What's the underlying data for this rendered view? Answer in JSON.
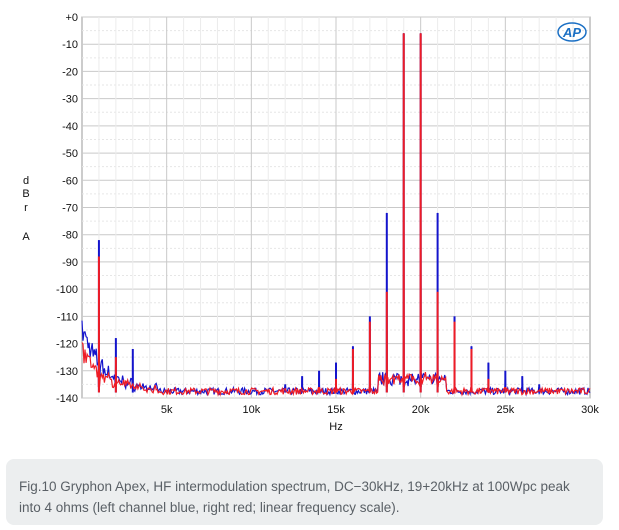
{
  "chart_data": {
    "type": "line",
    "title": "",
    "xlabel": "Hz",
    "ylabel_lines": [
      "d",
      "B",
      "r",
      "A"
    ],
    "xlim": [
      0,
      30000
    ],
    "ylim": [
      -140,
      0
    ],
    "grid": true,
    "x_ticks": [
      {
        "value": 5000,
        "label": "5k"
      },
      {
        "value": 10000,
        "label": "10k"
      },
      {
        "value": 15000,
        "label": "15k"
      },
      {
        "value": 20000,
        "label": "20k"
      },
      {
        "value": 25000,
        "label": "25k"
      },
      {
        "value": 30000,
        "label": "30k"
      }
    ],
    "y_ticks": [
      {
        "value": 0,
        "label": "+0"
      },
      {
        "value": -10,
        "label": "-10"
      },
      {
        "value": -20,
        "label": "-20"
      },
      {
        "value": -30,
        "label": "-30"
      },
      {
        "value": -40,
        "label": "-40"
      },
      {
        "value": -50,
        "label": "-50"
      },
      {
        "value": -60,
        "label": "-60"
      },
      {
        "value": -70,
        "label": "-70"
      },
      {
        "value": -80,
        "label": "-80"
      },
      {
        "value": -90,
        "label": "-90"
      },
      {
        "value": -100,
        "label": "-100"
      },
      {
        "value": -110,
        "label": "-110"
      },
      {
        "value": -120,
        "label": "-120"
      },
      {
        "value": -130,
        "label": "-130"
      },
      {
        "value": -140,
        "label": "-140"
      }
    ],
    "noise_floor_db": -138,
    "series": [
      {
        "name": "Left channel",
        "color": "#1414cc",
        "peaks": [
          {
            "x": 1000,
            "y": -82
          },
          {
            "x": 2000,
            "y": -118
          },
          {
            "x": 3000,
            "y": -122
          },
          {
            "x": 12000,
            "y": -135
          },
          {
            "x": 13000,
            "y": -132
          },
          {
            "x": 14000,
            "y": -130
          },
          {
            "x": 15000,
            "y": -127
          },
          {
            "x": 16000,
            "y": -121
          },
          {
            "x": 17000,
            "y": -110
          },
          {
            "x": 18000,
            "y": -72
          },
          {
            "x": 19000,
            "y": -6
          },
          {
            "x": 20000,
            "y": -6
          },
          {
            "x": 21000,
            "y": -72
          },
          {
            "x": 22000,
            "y": -110
          },
          {
            "x": 23000,
            "y": -121
          },
          {
            "x": 24000,
            "y": -127
          },
          {
            "x": 25000,
            "y": -130
          },
          {
            "x": 26000,
            "y": -132
          },
          {
            "x": 27000,
            "y": -135
          }
        ]
      },
      {
        "name": "Right channel",
        "color": "#ee1c25",
        "peaks": [
          {
            "x": 1000,
            "y": -88
          },
          {
            "x": 2000,
            "y": -125
          },
          {
            "x": 14000,
            "y": -137
          },
          {
            "x": 15000,
            "y": -133
          },
          {
            "x": 16000,
            "y": -122
          },
          {
            "x": 17000,
            "y": -112
          },
          {
            "x": 18000,
            "y": -101
          },
          {
            "x": 19000,
            "y": -6
          },
          {
            "x": 20000,
            "y": -6
          },
          {
            "x": 21000,
            "y": -101
          },
          {
            "x": 22000,
            "y": -112
          },
          {
            "x": 23000,
            "y": -122
          },
          {
            "x": 24000,
            "y": -133
          },
          {
            "x": 25000,
            "y": -137
          }
        ]
      }
    ]
  },
  "logo": {
    "text": "AP",
    "color": "#1a6fc4"
  },
  "caption": "Fig.10 Gryphon Apex, HF intermodulation spectrum, DC−30kHz, 19+20kHz at 100Wpc peak into 4 ohms (left channel blue, right red; linear frequency scale)."
}
